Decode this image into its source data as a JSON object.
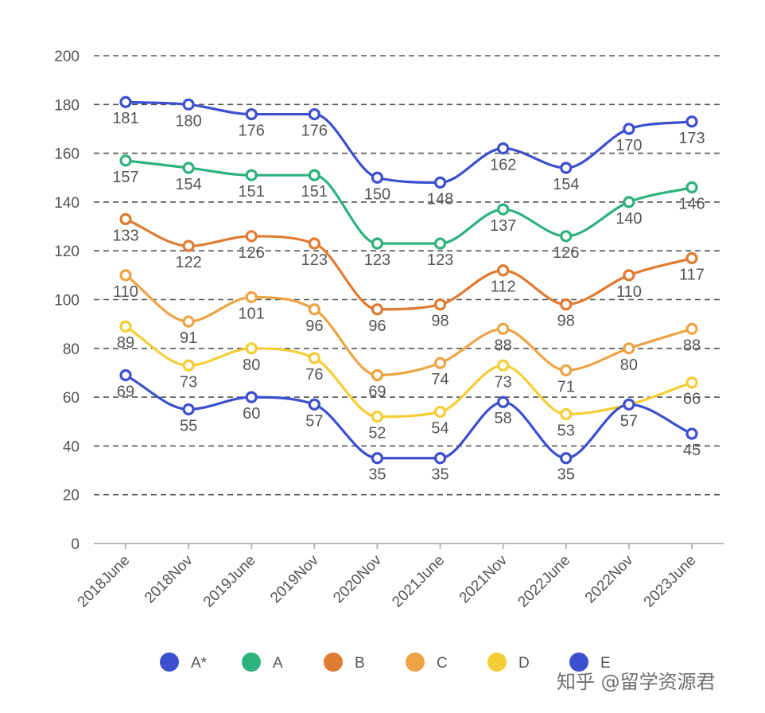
{
  "chart_data": {
    "type": "line",
    "title": "",
    "xlabel": "",
    "ylabel": "",
    "ylim": [
      0,
      200
    ],
    "yticks": [
      0,
      20,
      40,
      60,
      80,
      100,
      120,
      140,
      160,
      180,
      200
    ],
    "grid": true,
    "legend_position": "bottom",
    "categories": [
      "2018June",
      "2018Nov",
      "2019June",
      "2019Nov",
      "2020Nov",
      "2021June",
      "2021Nov",
      "2022June",
      "2022Nov",
      "2023June"
    ],
    "series": [
      {
        "name": "A*",
        "color": "#3c4fcf",
        "values": [
          181,
          180,
          176,
          176,
          150,
          148,
          162,
          154,
          170,
          173
        ]
      },
      {
        "name": "A",
        "color": "#2db27d",
        "values": [
          157,
          154,
          151,
          151,
          123,
          123,
          137,
          126,
          140,
          146
        ]
      },
      {
        "name": "B",
        "color": "#e07b32",
        "values": [
          133,
          122,
          126,
          123,
          96,
          98,
          112,
          98,
          110,
          117
        ]
      },
      {
        "name": "C",
        "color": "#eda445",
        "values": [
          110,
          91,
          101,
          96,
          69,
          74,
          88,
          71,
          80,
          88
        ]
      },
      {
        "name": "D",
        "color": "#f5cd34",
        "values": [
          89,
          73,
          80,
          76,
          52,
          54,
          73,
          53,
          57,
          66
        ]
      },
      {
        "name": "E",
        "color": "#3c4fcf",
        "values": [
          69,
          55,
          60,
          57,
          35,
          35,
          58,
          35,
          57,
          45
        ]
      }
    ]
  },
  "watermark": {
    "text": "知乎 @留学资源君"
  }
}
